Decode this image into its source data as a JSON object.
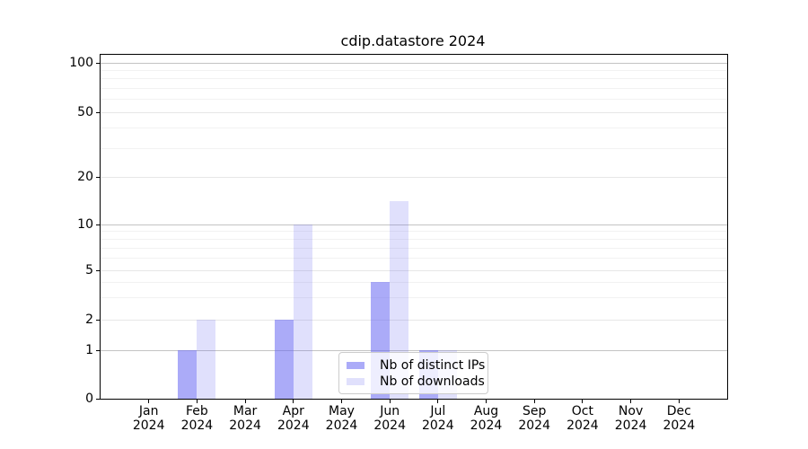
{
  "figure": {
    "title": "cdip.datastore 2024"
  },
  "chart_data": {
    "type": "bar",
    "title": "cdip.datastore 2024",
    "yscale": "symlog-asinh (linear 0-1, logarithmic above)",
    "grid": "horizontal",
    "legend_position": "bottom-center",
    "categories": [
      "Jan 2024",
      "Feb 2024",
      "Mar 2024",
      "Apr 2024",
      "May 2024",
      "Jun 2024",
      "Jul 2024",
      "Aug 2024",
      "Sep 2024",
      "Oct 2024",
      "Nov 2024",
      "Dec 2024"
    ],
    "x_tick_months": [
      "Jan",
      "Feb",
      "Mar",
      "Apr",
      "May",
      "Jun",
      "Jul",
      "Aug",
      "Sep",
      "Oct",
      "Nov",
      "Dec"
    ],
    "x_tick_year": "2024",
    "y_ticks": [
      0,
      1,
      2,
      5,
      10,
      20,
      50,
      100
    ],
    "y_decade_ticks": [
      1,
      10,
      100
    ],
    "y_minor_gridlines": [
      3,
      4,
      6,
      7,
      8,
      9,
      30,
      40,
      60,
      70,
      80,
      90
    ],
    "ylim": [
      0,
      120
    ],
    "series": [
      {
        "name": "Nb of distinct IPs",
        "color": "rgba(102,102,242,0.55)",
        "values": [
          0,
          1,
          0,
          2,
          0,
          4,
          1,
          0,
          0,
          0,
          0,
          0
        ]
      },
      {
        "name": "Nb of downloads",
        "color": "rgba(102,102,242,0.20)",
        "values": [
          0,
          2,
          0,
          10,
          0,
          14,
          1,
          0,
          0,
          0,
          0,
          0
        ]
      }
    ]
  },
  "colors": {
    "decade_gridline": "#c3c3c3",
    "major_gridline": "#e7e7e7",
    "minor_gridline": "#f2f2f2",
    "spine": "#000000",
    "legend_border": "#cccccc",
    "legend_background": "rgba(255,255,255,0.8)"
  }
}
